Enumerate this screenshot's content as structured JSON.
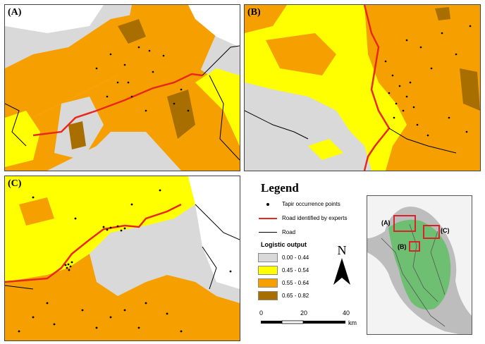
{
  "panels": {
    "a": {
      "label": "(A)"
    },
    "b": {
      "label": "(B)"
    },
    "c": {
      "label": "(C)"
    }
  },
  "legend": {
    "title": "Legend",
    "occurrence_label": "Tapir occurrence points",
    "expert_road_label": "Road identified by experts",
    "road_label": "Road",
    "logistic_title": "Logistic output",
    "classes": [
      {
        "range": "0.00 - 0.44",
        "color": "#d9d9d9"
      },
      {
        "range": "0.45 - 0.54",
        "color": "#ffff00"
      },
      {
        "range": "0.55 - 0.64",
        "color": "#f5a000"
      },
      {
        "range": "0.65 - 0.82",
        "color": "#a86e00"
      }
    ],
    "north_label": "N",
    "scale": {
      "tick_0": "0",
      "tick_20": "20",
      "tick_40": "40",
      "unit": "km"
    }
  },
  "inset": {
    "label_a": "(A)",
    "label_b": "(B)",
    "label_c": "(C)"
  },
  "colors": {
    "expert_road": "#e8281e",
    "road": "#000000",
    "highlight_box": "#d8232a",
    "inset_land": "#6fbf73"
  }
}
